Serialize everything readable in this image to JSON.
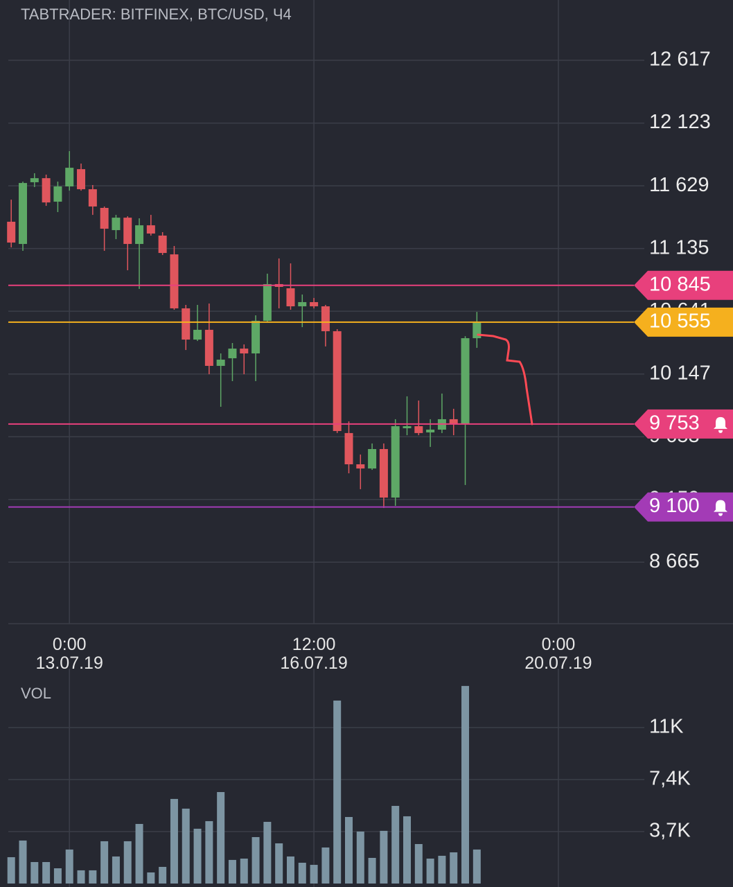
{
  "chart_data": [
    {
      "type": "candlestick",
      "title": "TABTRADER: BITFINEX, BTC/USD, Ч4",
      "x": [
        "2019-07-12T04:00",
        "2019-07-12T08:00",
        "2019-07-12T12:00",
        "2019-07-12T16:00",
        "2019-07-12T20:00",
        "2019-07-13T00:00",
        "2019-07-13T04:00",
        "2019-07-13T08:00",
        "2019-07-13T12:00",
        "2019-07-13T16:00",
        "2019-07-13T20:00",
        "2019-07-14T00:00",
        "2019-07-14T04:00",
        "2019-07-14T08:00",
        "2019-07-14T12:00",
        "2019-07-14T16:00",
        "2019-07-14T20:00",
        "2019-07-15T00:00",
        "2019-07-15T04:00",
        "2019-07-15T08:00",
        "2019-07-15T12:00",
        "2019-07-15T16:00",
        "2019-07-15T20:00",
        "2019-07-16T00:00",
        "2019-07-16T04:00",
        "2019-07-16T08:00",
        "2019-07-16T12:00",
        "2019-07-16T16:00",
        "2019-07-16T20:00",
        "2019-07-17T00:00",
        "2019-07-17T04:00",
        "2019-07-17T08:00",
        "2019-07-17T12:00",
        "2019-07-17T16:00",
        "2019-07-17T20:00",
        "2019-07-18T00:00",
        "2019-07-18T04:00",
        "2019-07-18T08:00",
        "2019-07-18T12:00",
        "2019-07-18T16:00",
        "2019-07-18T20:00"
      ],
      "open": [
        11346,
        11171,
        11657,
        11689,
        11504,
        11624,
        11760,
        11602,
        11455,
        11280,
        11378,
        11171,
        11318,
        11237,
        11089,
        10664,
        10418,
        10495,
        10211,
        10271,
        10347,
        10309,
        10566,
        10855,
        10822,
        10680,
        10713,
        10680,
        10484,
        9682,
        9436,
        9403,
        9556,
        9174,
        9720,
        9736,
        9687,
        9709,
        9791,
        9753,
        10429
      ],
      "high": [
        11520,
        11662,
        11728,
        11717,
        11662,
        11902,
        11804,
        11635,
        11466,
        11400,
        11389,
        11373,
        11400,
        11264,
        11155,
        10691,
        10691,
        10702,
        10309,
        10391,
        10380,
        10609,
        10937,
        11057,
        11018,
        10773,
        10746,
        10691,
        10500,
        9774,
        9513,
        9600,
        9600,
        9791,
        9971,
        9938,
        9791,
        9993,
        9873,
        10445,
        10636
      ],
      "low": [
        11144,
        11117,
        11619,
        11471,
        11422,
        11591,
        11591,
        11400,
        11117,
        11209,
        10964,
        10817,
        11237,
        11084,
        10653,
        10336,
        10407,
        10145,
        9889,
        10091,
        10145,
        10091,
        10555,
        10664,
        10653,
        10516,
        10664,
        10364,
        9682,
        9365,
        9240,
        9392,
        9092,
        9109,
        9665,
        9665,
        9573,
        9682,
        9665,
        9273,
        10353
      ],
      "close": [
        11182,
        11651,
        11689,
        11498,
        11624,
        11771,
        11602,
        11466,
        11291,
        11378,
        11171,
        11318,
        11253,
        11100,
        10664,
        10418,
        10495,
        10211,
        10260,
        10347,
        10309,
        10566,
        10855,
        10833,
        10680,
        10713,
        10680,
        10484,
        9698,
        9436,
        9403,
        9556,
        9174,
        9736,
        9736,
        9682,
        9709,
        9791,
        9753,
        10429,
        10555
      ],
      "up_color": "#5ea866",
      "down_color": "#e0565d",
      "xlim": [
        "2019-07-12T03:00",
        "2019-07-22T12:00"
      ],
      "xticks": [
        {
          "value": "2019-07-13T00:00",
          "label": "0:00\n13.07.19"
        },
        {
          "value": "2019-07-16T12:00",
          "label": "12:00\n16.07.19"
        },
        {
          "value": "2019-07-20T00:00",
          "label": "0:00\n20.07.19"
        }
      ],
      "ylim": [
        8181,
        13092
      ],
      "yticks": [
        {
          "value": 12617,
          "label": "12 617"
        },
        {
          "value": 12123,
          "label": "12 123"
        },
        {
          "value": 11629,
          "label": "11 629"
        },
        {
          "value": 11135,
          "label": "11 135"
        },
        {
          "value": 10641,
          "label": "10 641"
        },
        {
          "value": 10147,
          "label": "10 147"
        },
        {
          "value": 9653,
          "label": "9 653"
        },
        {
          "value": 9159,
          "label": "9 159"
        },
        {
          "value": 8665,
          "label": "8 665"
        }
      ],
      "grid": true,
      "price_lines": [
        {
          "value": 10845,
          "label": "10 845",
          "color": "#e8407c",
          "alert": false
        },
        {
          "value": 10555,
          "label": "10 555",
          "color": "#f5b01e",
          "alert": false
        },
        {
          "value": 9753,
          "label": "9 753",
          "color": "#e8407c",
          "alert": true
        },
        {
          "value": 9100,
          "label": "9 100",
          "color": "#a33bb6",
          "alert": true
        }
      ]
    },
    {
      "type": "bar",
      "title": "VOL",
      "x": [
        "2019-07-12T04:00",
        "2019-07-12T08:00",
        "2019-07-12T12:00",
        "2019-07-12T16:00",
        "2019-07-12T20:00",
        "2019-07-13T00:00",
        "2019-07-13T04:00",
        "2019-07-13T08:00",
        "2019-07-13T12:00",
        "2019-07-13T16:00",
        "2019-07-13T20:00",
        "2019-07-14T00:00",
        "2019-07-14T04:00",
        "2019-07-14T08:00",
        "2019-07-14T12:00",
        "2019-07-14T16:00",
        "2019-07-14T20:00",
        "2019-07-15T00:00",
        "2019-07-15T04:00",
        "2019-07-15T08:00",
        "2019-07-15T12:00",
        "2019-07-15T16:00",
        "2019-07-15T20:00",
        "2019-07-16T00:00",
        "2019-07-16T04:00",
        "2019-07-16T08:00",
        "2019-07-16T12:00",
        "2019-07-16T16:00",
        "2019-07-16T20:00",
        "2019-07-17T00:00",
        "2019-07-17T04:00",
        "2019-07-17T08:00",
        "2019-07-17T12:00",
        "2019-07-17T16:00",
        "2019-07-17T20:00",
        "2019-07-18T00:00",
        "2019-07-18T04:00",
        "2019-07-18T08:00",
        "2019-07-18T12:00",
        "2019-07-18T16:00",
        "2019-07-18T20:00"
      ],
      "values": [
        1875,
        3060,
        1530,
        1530,
        1085,
        2420,
        940,
        940,
        3010,
        1925,
        3010,
        4240,
        790,
        1185,
        6020,
        5330,
        3900,
        4440,
        6510,
        1680,
        1775,
        3305,
        4390,
        2860,
        1925,
        1480,
        1330,
        2565,
        13020,
        4735,
        3700,
        1825,
        3750,
        5525,
        4785,
        2810,
        1775,
        1975,
        2220,
        14060,
        2420
      ],
      "color": "#7d95a3",
      "ylim": [
        0,
        14300
      ],
      "yticks": [
        {
          "value": 3700,
          "label": "3,7K"
        },
        {
          "value": 7400,
          "label": "7,4K"
        },
        {
          "value": 11100,
          "label": "11K"
        }
      ],
      "grid": true
    }
  ]
}
